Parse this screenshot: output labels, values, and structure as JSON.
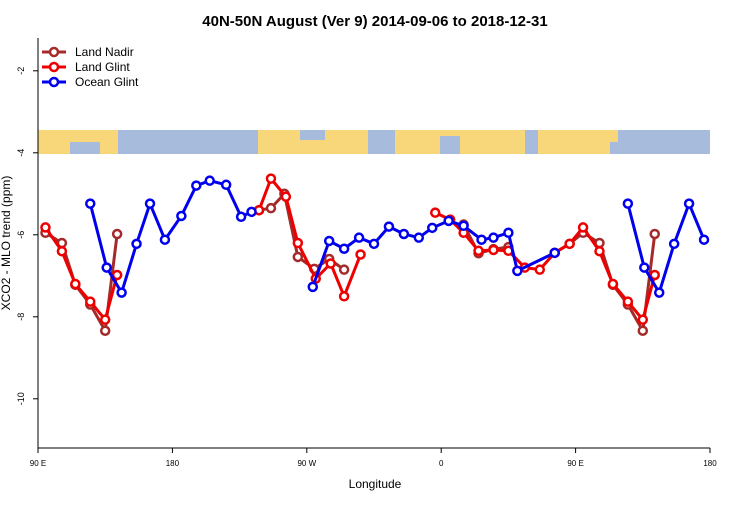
{
  "chart_data": {
    "type": "line",
    "title": "40N-50N August (Ver 9)   2014-09-06 to 2018-12-31",
    "x_label": "Longitude",
    "y_label": "XCO2 - MLO trend (ppm)",
    "xlim": [
      90,
      540
    ],
    "xticks": [
      {
        "value": 90,
        "label": "90 E"
      },
      {
        "value": 180,
        "label": "180"
      },
      {
        "value": 270,
        "label": "90 W"
      },
      {
        "value": 360,
        "label": "0"
      },
      {
        "value": 450,
        "label": "90 E"
      },
      {
        "value": 540,
        "label": "180"
      }
    ],
    "ylim": [
      -11.2,
      -1.2
    ],
    "yticks": [
      -10,
      -8,
      -6,
      -4,
      -2
    ],
    "legend": "upper left",
    "series": [
      {
        "name": "Land Nadir",
        "color": "#a52a2a",
        "x": [
          95,
          106,
          115,
          125,
          135,
          143,
          190,
          238,
          246,
          255,
          264,
          275,
          285,
          295,
          330,
          375,
          385,
          395,
          405,
          420,
          436,
          446,
          455,
          466,
          475,
          485,
          495,
          503
        ],
        "values": [
          -5.95,
          -6.2,
          -7.22,
          -7.7,
          -8.34,
          -5.98,
          null,
          -5.4,
          -5.35,
          -5.0,
          -6.54,
          -6.83,
          -6.59,
          -6.85,
          null,
          -5.75,
          -6.45,
          -6.35,
          -6.3,
          null,
          -6.44,
          -6.22,
          -5.95,
          -6.2,
          -7.22,
          -7.7,
          -8.34,
          -5.98
        ]
      },
      {
        "name": "Land Glint",
        "color": "#ee0000",
        "x": [
          95,
          106,
          115,
          125,
          135,
          143,
          190,
          238,
          246,
          256,
          264,
          276,
          286,
          295,
          306,
          330,
          356,
          366,
          375,
          385,
          395,
          405,
          416,
          426,
          436,
          446,
          455,
          466,
          475,
          485,
          495,
          503
        ],
        "values": [
          -5.82,
          -6.4,
          -7.2,
          -7.63,
          -8.07,
          -6.98,
          null,
          -5.4,
          -4.63,
          -5.07,
          -6.2,
          -7.07,
          -6.7,
          -7.5,
          -6.48,
          null,
          -5.46,
          -5.63,
          -5.95,
          -6.39,
          -6.37,
          -6.39,
          -6.8,
          -6.85,
          -6.44,
          -6.22,
          -5.82,
          -6.4,
          -7.2,
          -7.63,
          -8.07,
          -6.98
        ]
      },
      {
        "name": "Ocean Glint",
        "color": "#0000ee",
        "x": [
          125,
          136,
          146,
          156,
          165,
          175,
          186,
          196,
          205,
          216,
          226,
          233,
          260,
          274,
          285,
          295,
          305,
          315,
          325,
          335,
          345,
          354,
          365,
          375,
          387,
          395,
          405,
          411,
          436,
          460,
          485,
          496,
          506,
          516,
          526,
          536
        ],
        "values": [
          -5.24,
          -6.8,
          -7.41,
          -6.22,
          -5.24,
          -6.12,
          -5.54,
          -4.8,
          -4.68,
          -4.78,
          -5.56,
          -5.44,
          null,
          -7.27,
          -6.15,
          -6.34,
          -6.07,
          -6.22,
          -5.8,
          -5.98,
          -6.07,
          -5.83,
          -5.66,
          -5.78,
          -6.12,
          -6.07,
          -5.95,
          -6.88,
          -6.44,
          null,
          -5.24,
          -6.8,
          -7.41,
          -6.22,
          -5.24,
          -6.12
        ]
      }
    ]
  }
}
